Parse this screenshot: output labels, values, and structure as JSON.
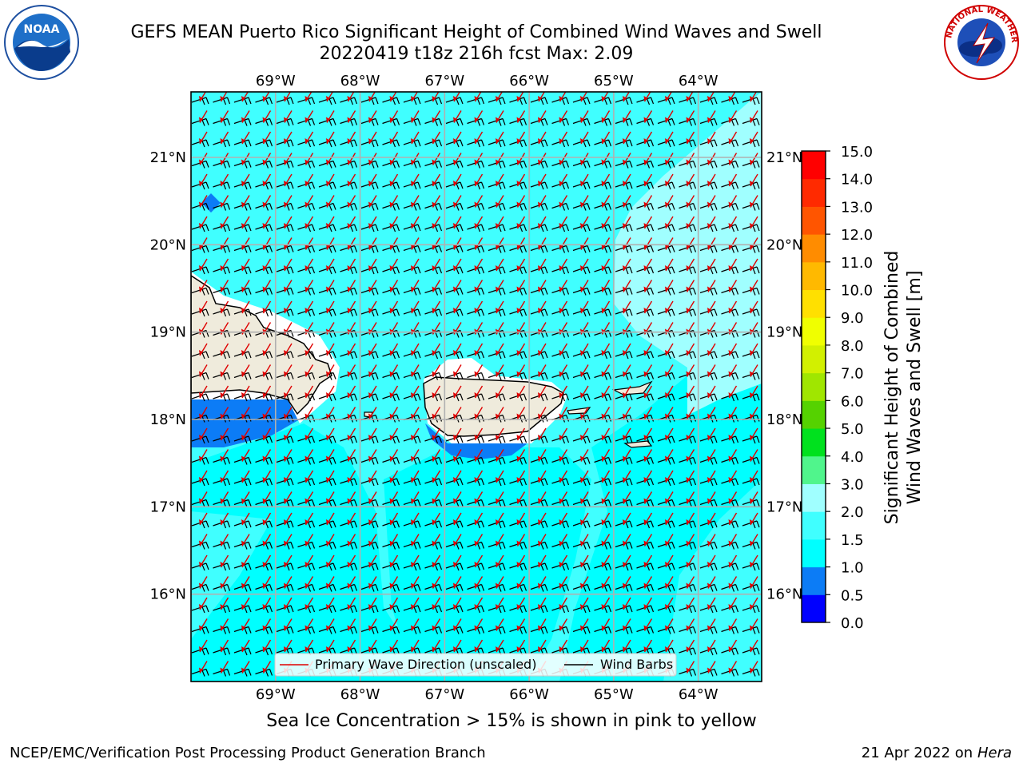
{
  "header": {
    "title_line1": "GEFS MEAN Puerto Rico Significant Height of Combined Wind Waves and Swell",
    "title_line2": "20220419 t18z 216h fcst   Max: 2.09"
  },
  "logos": {
    "left": "noaa-logo",
    "right": "national-weather-service-logo",
    "left_text": "NOAA",
    "right_text": "NATIONAL WEATHER SERVICE"
  },
  "map": {
    "region": "Puerto Rico",
    "lon_labels": [
      "69°W",
      "68°W",
      "67°W",
      "66°W",
      "65°W",
      "64°W"
    ],
    "lat_labels": [
      "21°N",
      "20°N",
      "19°N",
      "18°N",
      "17°N",
      "16°N"
    ],
    "lon_range": [
      -70.0,
      -63.25
    ],
    "lat_range": [
      15.0,
      21.75
    ],
    "grid": true,
    "wind_barb_color": "#000000",
    "wave_arrow_color": "#e00000",
    "land_color": "#efebdc"
  },
  "legend": {
    "placement": "lower-center",
    "wave_label": "Primary Wave Direction (unscaled)",
    "barb_label": "Wind Barbs"
  },
  "colorbar": {
    "label_line1": "Significant Height of Combined",
    "label_line2": "Wind Waves and Swell [m]",
    "ticks": [
      "0.0",
      "0.5",
      "1.0",
      "1.5",
      "2.0",
      "3.0",
      "4.0",
      "5.0",
      "6.0",
      "7.0",
      "8.0",
      "9.0",
      "10.0",
      "11.0",
      "12.0",
      "13.0",
      "14.0",
      "15.0"
    ],
    "colors": [
      "#0000ff",
      "#0c7cf6",
      "#00ffff",
      "#40ffff",
      "#a0ffff",
      "#50f58c",
      "#00e11e",
      "#55d200",
      "#a0e600",
      "#d2f000",
      "#f0ff00",
      "#ffe000",
      "#ffb900",
      "#ff8c00",
      "#ff5500",
      "#ff2a00",
      "#ff0000"
    ]
  },
  "footer": {
    "subtitle": "Sea Ice Concentration > 15% is shown in pink to yellow",
    "left": "NCEP/EMC/Verification Post Processing Product Generation Branch",
    "right_date": "21 Apr 2022 on",
    "right_machine": "Hera"
  }
}
